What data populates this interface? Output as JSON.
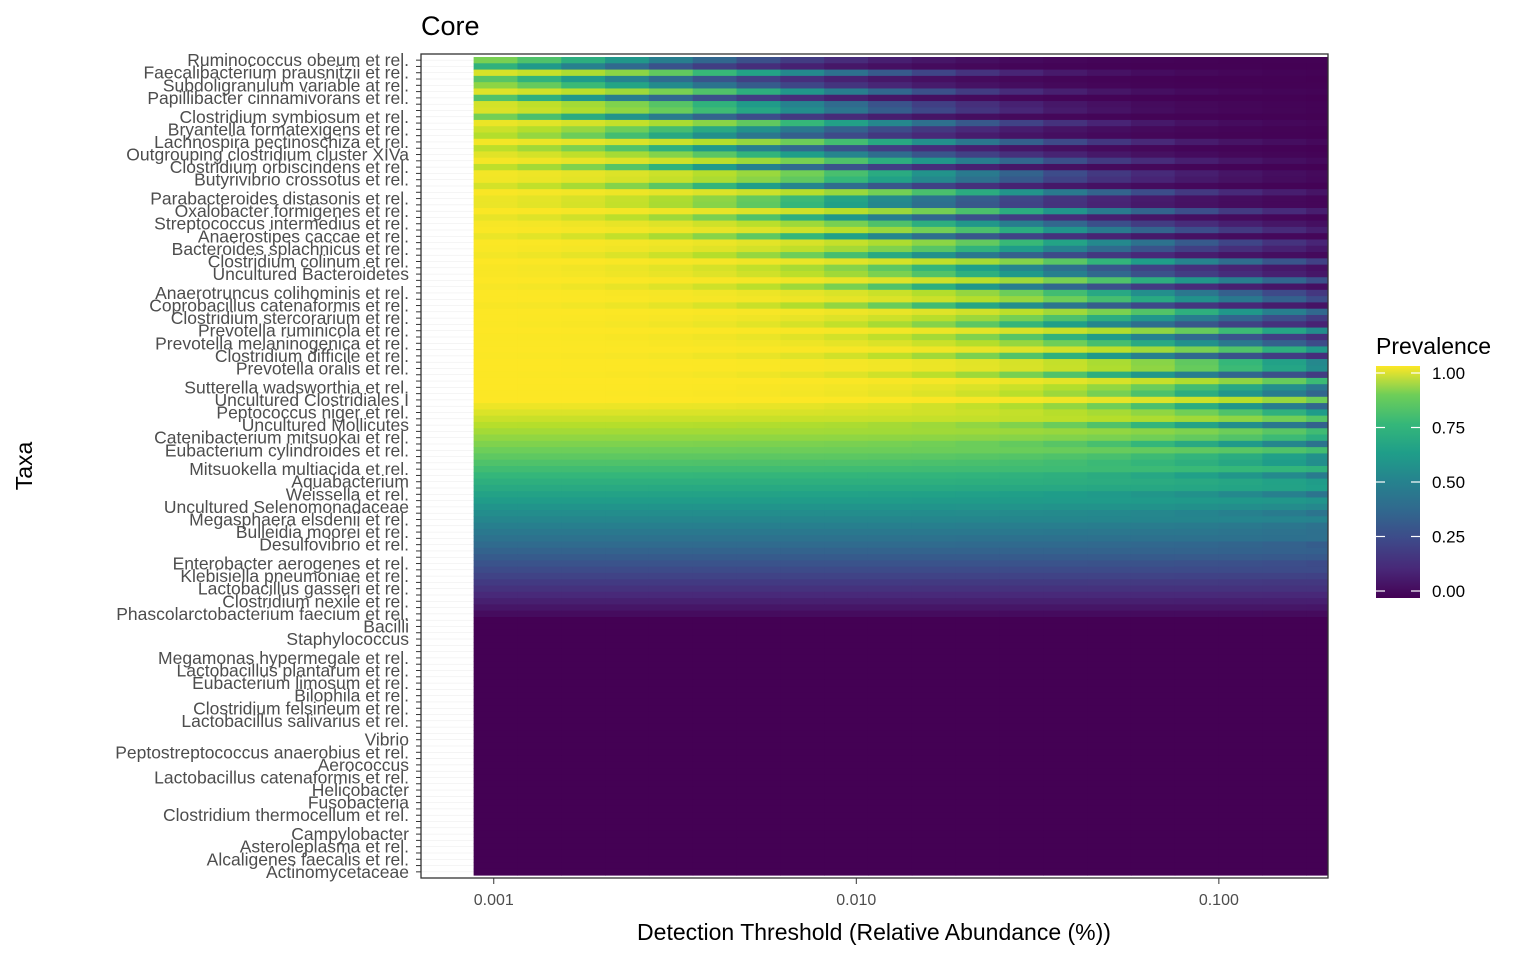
{
  "chart_data": {
    "type": "heatmap",
    "title": "Core",
    "xlabel": "Detection Threshold (Relative Abundance (%))",
    "ylabel": "Taxa",
    "x_scale": "log10",
    "x_ticks": [
      "0.001",
      "0.010",
      "0.100"
    ],
    "x_tick_values": [
      0.001,
      0.01,
      0.1
    ],
    "xlim": [
      0.00063,
      0.2
    ],
    "data_x_range": [
      0.00088,
      0.23
    ],
    "x_bins": 20,
    "colormap": "viridis",
    "legend": {
      "title": "Prevalence",
      "labels": [
        "1.00",
        "0.75",
        "0.50",
        "0.25",
        "0.00"
      ],
      "values": [
        1,
        0.75,
        0.5,
        0.25,
        0
      ],
      "position": "right"
    },
    "taxa_total": 130,
    "taxa_labels": [
      "Ruminococcus obeum et rel.",
      "Faecalibacterium prausnitzii et rel.",
      "Subdoligranulum variable at rel.",
      "Papillibacter cinnamivorans et rel.",
      "Clostridium symbiosum et rel.",
      "Bryantella formatexigens et rel.",
      "Lachnospira pectinoschiza et rel.",
      "Outgrouping clostridium cluster XIVa",
      "Clostridium orbiscindens et rel.",
      "Butyrivibrio crossotus et rel.",
      "Parabacteroides distasonis et rel.",
      "Oxalobacter formigenes et rel.",
      "Streptococcus intermedius et rel.",
      "Anaerostipes caccae et rel.",
      "Bacteroides splachnicus et rel.",
      "Clostridium colinum et rel.",
      "Uncultured Bacteroidetes",
      "Anaerotruncus colihominis et rel.",
      "Coprobacillus catenaformis et rel.",
      "Clostridium stercorarium et rel.",
      "Prevotella ruminicola et rel.",
      "Prevotella melaninogenica et rel.",
      "Clostridium difficile et rel.",
      "Prevotella oralis et rel.",
      "Sutterella wadsworthia et rel.",
      "Uncultured Clostridiales I",
      "Peptococcus niger et rel.",
      "Uncultured Mollicutes",
      "Catenibacterium mitsuokai et rel.",
      "Eubacterium cylindroides et rel.",
      "Mitsuokella multiacida et rel.",
      "Aquabacterium",
      "Weissella et rel.",
      "Uncultured Selenomonadaceae",
      "Megasphaera elsdenii et rel.",
      "Bulleidia moorei et rel.",
      "Desulfovibrio et rel.",
      "Enterobacter aerogenes et rel.",
      "Klebisiella pneumoniae et rel.",
      "Lactobacillus gasseri et rel.",
      "Clostridium nexile et rel.",
      "Phascolarctobacterium faecium et rel.",
      "Bacilli",
      "Staphylococcus",
      "Megamonas hypermegale et rel.",
      "Lactobacillus plantarum et rel.",
      "Eubacterium limosum et rel.",
      "Bilophila et rel.",
      "Clostridium felsineum et rel.",
      "Lactobacillus salivarius et rel.",
      "Vibrio",
      "Peptostreptococcus anaerobius et rel.",
      "Aerococcus",
      "Lactobacillus catenaformis et rel.",
      "Helicobacter",
      "Fusobacteria",
      "Clostridium thermocellum et rel.",
      "Campylobacter",
      "Asteroleplasma et rel.",
      "Alcaligenes faecalis et rel.",
      "Actinomycetaceae"
    ]
  }
}
